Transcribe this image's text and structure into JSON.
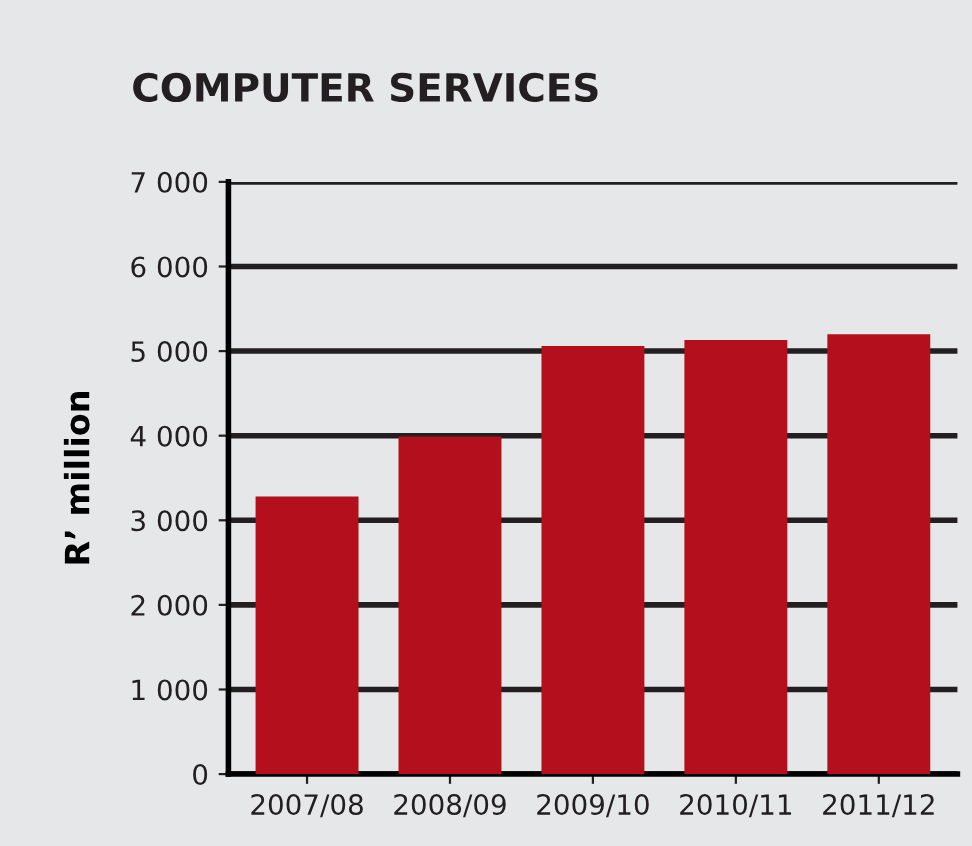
{
  "chart_data": {
    "type": "bar",
    "title": "COMPUTER SERVICES",
    "ylabel": "R’ million",
    "categories": [
      "2007/08",
      "2008/09",
      "2009/10",
      "2010/11",
      "2011/12"
    ],
    "values": [
      3280,
      3990,
      5060,
      5130,
      5200
    ],
    "color": "#b30f1c",
    "ylim": [
      0,
      7000
    ],
    "yticks": [
      0,
      {
        "value": 1000,
        "label": "1 000"
      },
      {
        "value": 2000,
        "label": "2 000"
      },
      {
        "value": 3000,
        "label": "3 000"
      },
      {
        "value": 4000,
        "label": "4 000"
      },
      {
        "value": 5000,
        "label": "5 000"
      },
      {
        "value": 6000,
        "label": "6 000"
      },
      {
        "value": 7000,
        "label": "7 000"
      }
    ],
    "grid": "y"
  }
}
